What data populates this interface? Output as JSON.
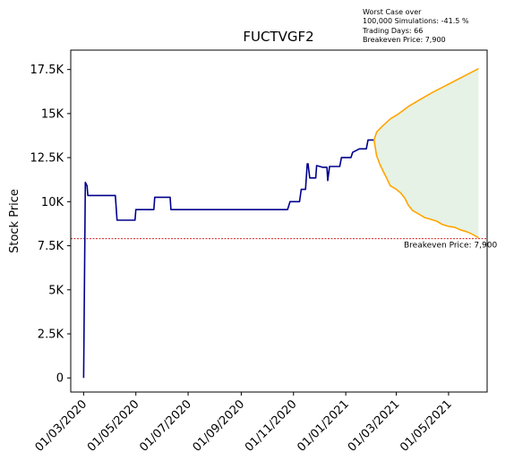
{
  "chart_data": {
    "type": "line",
    "title": "FUCTVGF2",
    "ylabel": "Stock Price",
    "xlabel": "",
    "ylim": [
      -800,
      18600
    ],
    "xlim": [
      "2020-02-15",
      "2021-06-15"
    ],
    "yticks": [
      0,
      2500,
      5000,
      7500,
      10000,
      12500,
      15000,
      17500
    ],
    "ytick_labels": [
      "0",
      "2.5K",
      "5K",
      "7.5K",
      "10K",
      "12.5K",
      "15K",
      "17.5K"
    ],
    "xticks": [
      "2020-03-01",
      "2020-05-01",
      "2020-07-01",
      "2020-09-01",
      "2020-11-01",
      "2021-01-01",
      "2021-03-01",
      "2021-05-01"
    ],
    "xtick_labels": [
      "01/03/2020",
      "01/05/2020",
      "01/07/2020",
      "01/09/2020",
      "01/11/2020",
      "01/01/2021",
      "01/03/2021",
      "01/05/2021"
    ],
    "grid": false,
    "series": [
      {
        "role": "history",
        "color": "#00008b",
        "points": [
          [
            "2020-03-01",
            0
          ],
          [
            "2020-03-03",
            11100
          ],
          [
            "2020-03-05",
            10900
          ],
          [
            "2020-03-06",
            10350
          ],
          [
            "2020-04-07",
            10350
          ],
          [
            "2020-04-08",
            9700
          ],
          [
            "2020-04-09",
            8950
          ],
          [
            "2020-04-30",
            8950
          ],
          [
            "2020-05-01",
            9550
          ],
          [
            "2020-05-22",
            9550
          ],
          [
            "2020-05-23",
            10250
          ],
          [
            "2020-06-10",
            10250
          ],
          [
            "2020-06-11",
            9550
          ],
          [
            "2020-10-25",
            9550
          ],
          [
            "2020-10-28",
            10000
          ],
          [
            "2020-11-08",
            10000
          ],
          [
            "2020-11-10",
            10700
          ],
          [
            "2020-11-15",
            10700
          ],
          [
            "2020-11-17",
            12150
          ],
          [
            "2020-11-18",
            12150
          ],
          [
            "2020-11-20",
            11350
          ],
          [
            "2020-11-27",
            11350
          ],
          [
            "2020-11-28",
            12050
          ],
          [
            "2020-12-05",
            11950
          ],
          [
            "2020-12-10",
            11950
          ],
          [
            "2020-12-11",
            11200
          ],
          [
            "2020-12-13",
            12000
          ],
          [
            "2020-12-25",
            12000
          ],
          [
            "2020-12-27",
            12500
          ],
          [
            "2021-01-07",
            12500
          ],
          [
            "2021-01-09",
            12800
          ],
          [
            "2021-01-17",
            13000
          ],
          [
            "2021-01-25",
            13000
          ],
          [
            "2021-01-27",
            13500
          ],
          [
            "2021-02-03",
            13500
          ]
        ]
      },
      {
        "role": "best-case",
        "color": "#ffa500",
        "points": [
          [
            "2021-02-03",
            13500
          ],
          [
            "2021-02-06",
            13950
          ],
          [
            "2021-02-13",
            14300
          ],
          [
            "2021-02-22",
            14700
          ],
          [
            "2021-03-04",
            15000
          ],
          [
            "2021-03-15",
            15400
          ],
          [
            "2021-03-29",
            15800
          ],
          [
            "2021-04-12",
            16200
          ],
          [
            "2021-04-26",
            16550
          ],
          [
            "2021-05-10",
            16900
          ],
          [
            "2021-05-24",
            17250
          ],
          [
            "2021-06-05",
            17550
          ]
        ]
      },
      {
        "role": "worst-case",
        "color": "#ffa500",
        "points": [
          [
            "2021-02-03",
            13500
          ],
          [
            "2021-02-06",
            12600
          ],
          [
            "2021-02-10",
            12100
          ],
          [
            "2021-02-14",
            11700
          ],
          [
            "2021-02-18",
            11300
          ],
          [
            "2021-02-22",
            10900
          ],
          [
            "2021-03-01",
            10700
          ],
          [
            "2021-03-06",
            10500
          ],
          [
            "2021-03-11",
            10200
          ],
          [
            "2021-03-15",
            9800
          ],
          [
            "2021-03-20",
            9500
          ],
          [
            "2021-03-27",
            9300
          ],
          [
            "2021-04-03",
            9100
          ],
          [
            "2021-04-10",
            9000
          ],
          [
            "2021-04-17",
            8900
          ],
          [
            "2021-04-24",
            8700
          ],
          [
            "2021-05-01",
            8600
          ],
          [
            "2021-05-08",
            8550
          ],
          [
            "2021-05-15",
            8400
          ],
          [
            "2021-05-22",
            8300
          ],
          [
            "2021-05-29",
            8150
          ],
          [
            "2021-06-05",
            7950
          ]
        ]
      }
    ],
    "shade_color": "#b5dbb5",
    "breakeven": {
      "value": 7900,
      "color": "#c80000",
      "label": "Breakeven Price: 7,900"
    },
    "info_lines": [
      "Worst Case over",
      "100,000 Simulations: -41.5 %",
      "Trading Days: 66",
      "Breakeven Price: 7,900"
    ]
  }
}
